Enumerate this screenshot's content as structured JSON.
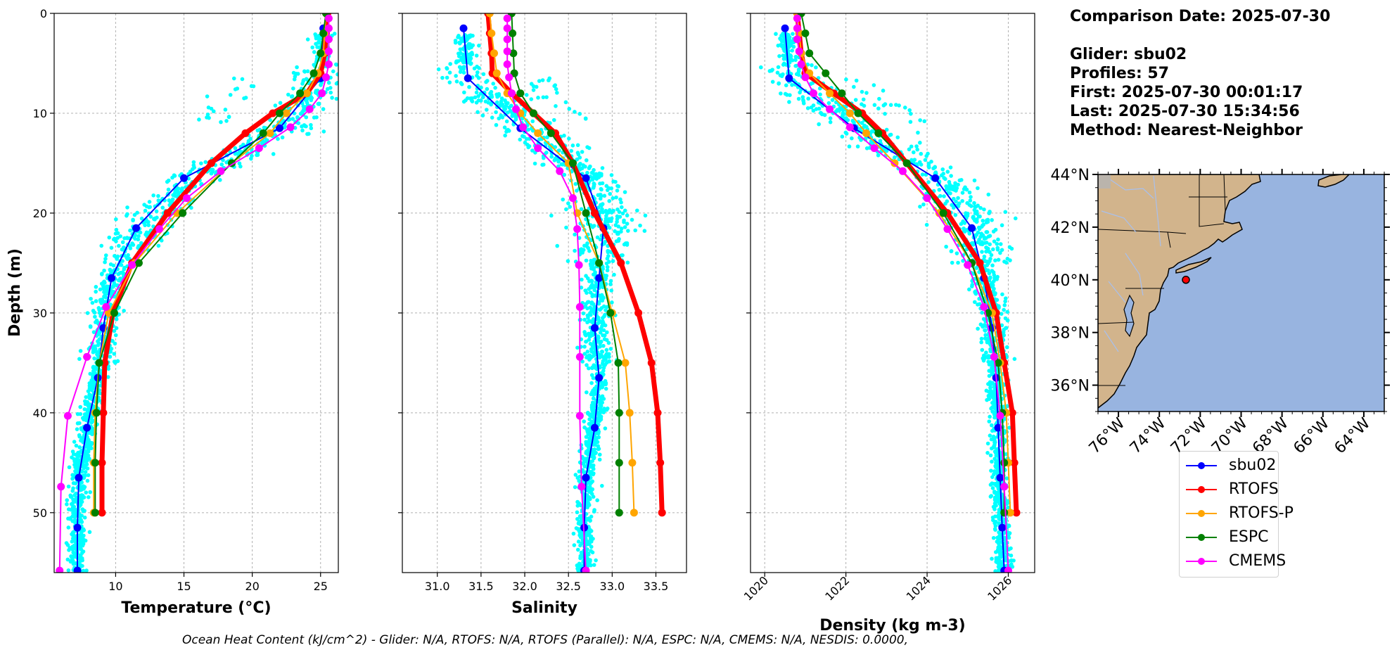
{
  "info": {
    "date_line": "Comparison Date: 2025-07-30",
    "glider_line": "Glider: sbu02",
    "profiles_line": "Profiles: 57",
    "first_line": "First: 2025-07-30 00:01:17",
    "last_line": "Last: 2025-07-30 15:34:56",
    "method_line": "Method: Nearest-Neighbor"
  },
  "footer": "Ocean Heat Content (kJ/cm^2) - Glider: N/A,  RTOFS: N/A,  RTOFS (Parallel): N/A,  ESPC: N/A,  CMEMS: N/A,  NESDIS: 0.0000,",
  "legend": [
    {
      "label": "sbu02",
      "color": "#0000ff"
    },
    {
      "label": "RTOFS",
      "color": "#ff0000"
    },
    {
      "label": "RTOFS-P",
      "color": "#ffa500"
    },
    {
      "label": "ESPC",
      "color": "#008000"
    },
    {
      "label": "CMEMS",
      "color": "#ff00ff"
    }
  ],
  "chart_data": [
    {
      "type": "line",
      "xlabel": "Temperature (°C)",
      "ylabel": "Depth (m)",
      "xlim": [
        5.5,
        26.3
      ],
      "ylim": [
        56,
        0
      ],
      "xticks": [
        10,
        15,
        20,
        25
      ],
      "yticks": [
        0,
        10,
        20,
        30,
        40,
        50
      ],
      "grid": true,
      "scatter": {
        "name": "glider observations",
        "color": "#00ffff",
        "count": 1400
      },
      "series": [
        {
          "name": "sbu02",
          "depths": [
            1.5,
            6.5,
            11.5,
            16.5,
            21.5,
            26.5,
            31.5,
            36.5,
            41.5,
            46.5,
            51.5,
            55.8
          ],
          "values": [
            25.2,
            25.0,
            22.0,
            15.0,
            11.5,
            9.7,
            9.1,
            8.7,
            7.9,
            7.3,
            7.2,
            7.2
          ]
        },
        {
          "name": "RTOFS",
          "depths": [
            0,
            2,
            4,
            6,
            8,
            10,
            12,
            15,
            20,
            25,
            30,
            35,
            40,
            45,
            50
          ],
          "values": [
            25.5,
            25.4,
            25.3,
            25.0,
            24.0,
            21.5,
            19.5,
            17.0,
            13.8,
            11.2,
            9.8,
            9.2,
            9.1,
            9.0,
            9.0
          ]
        },
        {
          "name": "RTOFS-P",
          "depths": [
            0,
            2,
            4,
            6,
            8,
            10,
            12,
            15,
            20,
            25,
            30,
            35,
            40,
            45,
            50
          ],
          "values": [
            25.4,
            25.3,
            25.2,
            24.8,
            24.0,
            22.5,
            21.3,
            18.5,
            14.5,
            11.4,
            9.5,
            8.8,
            8.5,
            8.4,
            8.4
          ]
        },
        {
          "name": "ESPC",
          "depths": [
            0,
            2,
            4,
            6,
            8,
            10,
            12,
            15,
            20,
            25,
            30,
            35,
            40,
            45,
            50
          ],
          "values": [
            25.4,
            25.2,
            25.0,
            24.5,
            23.5,
            22.0,
            20.8,
            18.5,
            14.9,
            11.7,
            9.9,
            8.8,
            8.6,
            8.5,
            8.5
          ]
        },
        {
          "name": "CMEMS",
          "depths": [
            0.5,
            1.5,
            2.6,
            3.8,
            5.1,
            6.4,
            8.0,
            9.6,
            11.4,
            13.5,
            15.8,
            18.5,
            21.6,
            25.2,
            29.4,
            34.4,
            40.3,
            47.4,
            55.8
          ],
          "values": [
            25.6,
            25.6,
            25.6,
            25.6,
            25.6,
            25.4,
            25.1,
            24.2,
            22.8,
            20.5,
            17.7,
            15.2,
            13.2,
            11.2,
            9.3,
            7.9,
            6.5,
            6.0,
            5.9
          ]
        }
      ]
    },
    {
      "type": "line",
      "xlabel": "Salinity",
      "ylabel": "",
      "xlim": [
        30.6,
        33.85
      ],
      "ylim": [
        56,
        0
      ],
      "xticks": [
        31.0,
        31.5,
        32.0,
        32.5,
        33.0,
        33.5
      ],
      "yticks": [
        0,
        10,
        20,
        30,
        40,
        50
      ],
      "grid": true,
      "scatter": {
        "name": "glider observations",
        "color": "#00ffff",
        "count": 1400
      },
      "series": [
        {
          "name": "sbu02",
          "depths": [
            1.5,
            6.5,
            11.5,
            16.5,
            21.5,
            26.5,
            31.5,
            36.5,
            41.5,
            46.5,
            51.5,
            55.8
          ],
          "values": [
            31.3,
            31.35,
            31.95,
            32.7,
            32.9,
            32.85,
            32.8,
            32.85,
            32.8,
            32.7,
            32.68,
            32.68
          ]
        },
        {
          "name": "RTOFS",
          "depths": [
            0,
            2,
            4,
            6,
            8,
            10,
            12,
            15,
            20,
            25,
            30,
            35,
            40,
            45,
            50
          ],
          "values": [
            31.58,
            31.6,
            31.62,
            31.63,
            31.85,
            32.1,
            32.35,
            32.55,
            32.8,
            33.1,
            33.3,
            33.45,
            33.52,
            33.55,
            33.57
          ]
        },
        {
          "name": "RTOFS-P",
          "depths": [
            0,
            2,
            4,
            6,
            8,
            10,
            12,
            15,
            20,
            25,
            30,
            35,
            40,
            45,
            50
          ],
          "values": [
            31.6,
            31.62,
            31.65,
            31.68,
            31.8,
            31.95,
            32.15,
            32.5,
            32.6,
            32.85,
            33.0,
            33.15,
            33.2,
            33.23,
            33.25
          ]
        },
        {
          "name": "ESPC",
          "depths": [
            0,
            2,
            4,
            6,
            8,
            10,
            12,
            15,
            20,
            25,
            30,
            35,
            40,
            45,
            50
          ],
          "values": [
            31.85,
            31.86,
            31.87,
            31.88,
            31.95,
            32.1,
            32.3,
            32.55,
            32.7,
            32.85,
            32.98,
            33.07,
            33.08,
            33.08,
            33.08
          ]
        },
        {
          "name": "CMEMS",
          "depths": [
            0.5,
            1.5,
            2.6,
            3.8,
            5.1,
            6.4,
            8.0,
            9.6,
            11.4,
            13.5,
            15.8,
            18.5,
            21.6,
            25.2,
            29.4,
            34.4,
            40.3,
            47.4,
            55.8
          ],
          "values": [
            31.8,
            31.8,
            31.8,
            31.8,
            31.8,
            31.82,
            31.85,
            31.9,
            31.98,
            32.15,
            32.4,
            32.55,
            32.6,
            32.62,
            32.63,
            32.63,
            32.63,
            32.65,
            32.7
          ]
        }
      ]
    },
    {
      "type": "line",
      "xlabel": "Density (kg m-3)",
      "ylabel": "",
      "xlim": [
        1019.65,
        1026.65
      ],
      "ylim": [
        56,
        0
      ],
      "xticks": [
        1020,
        1022,
        1024,
        1026
      ],
      "yticks": [
        0,
        10,
        20,
        30,
        40,
        50
      ],
      "grid": true,
      "scatter": {
        "name": "glider observations",
        "color": "#00ffff",
        "count": 1400
      },
      "series": [
        {
          "name": "sbu02",
          "depths": [
            1.5,
            6.5,
            11.5,
            16.5,
            21.5,
            26.5,
            31.5,
            36.5,
            41.5,
            46.5,
            51.5,
            55.8
          ],
          "values": [
            1020.5,
            1020.6,
            1022.2,
            1024.2,
            1025.1,
            1025.4,
            1025.6,
            1025.7,
            1025.75,
            1025.8,
            1025.85,
            1025.9
          ]
        },
        {
          "name": "RTOFS",
          "depths": [
            0,
            2,
            4,
            6,
            8,
            10,
            12,
            15,
            20,
            25,
            30,
            35,
            40,
            45,
            50
          ],
          "values": [
            1020.8,
            1020.85,
            1020.9,
            1021.0,
            1021.7,
            1022.4,
            1022.9,
            1023.5,
            1024.5,
            1025.3,
            1025.7,
            1025.9,
            1026.1,
            1026.15,
            1026.2
          ]
        },
        {
          "name": "RTOFS-P",
          "depths": [
            0,
            2,
            4,
            6,
            8,
            10,
            12,
            15,
            20,
            25,
            30,
            35,
            40,
            45,
            50
          ],
          "values": [
            1020.8,
            1020.85,
            1020.9,
            1021.1,
            1021.6,
            1022.1,
            1022.5,
            1023.2,
            1024.3,
            1025.1,
            1025.6,
            1025.8,
            1025.95,
            1026.0,
            1026.05
          ]
        },
        {
          "name": "ESPC",
          "depths": [
            0,
            2,
            4,
            6,
            8,
            10,
            12,
            15,
            20,
            25,
            30,
            35,
            40,
            45,
            50
          ],
          "values": [
            1020.9,
            1021.0,
            1021.1,
            1021.5,
            1021.9,
            1022.3,
            1022.8,
            1023.5,
            1024.4,
            1025.1,
            1025.5,
            1025.75,
            1025.85,
            1025.9,
            1025.9
          ]
        },
        {
          "name": "CMEMS",
          "depths": [
            0.5,
            1.5,
            2.6,
            3.8,
            5.1,
            6.4,
            8.0,
            9.6,
            11.4,
            13.5,
            15.8,
            18.5,
            21.6,
            25.2,
            29.4,
            34.4,
            40.3,
            47.4,
            55.8
          ],
          "values": [
            1020.8,
            1020.8,
            1020.8,
            1020.85,
            1020.9,
            1021.0,
            1021.2,
            1021.6,
            1022.1,
            1022.7,
            1023.4,
            1024.0,
            1024.5,
            1025.0,
            1025.4,
            1025.65,
            1025.8,
            1025.9,
            1026.0
          ]
        }
      ]
    },
    {
      "type": "map",
      "title": "",
      "lon_range": [
        -77,
        -63
      ],
      "lat_range": [
        35,
        44
      ],
      "lon_ticks": [
        "76°W",
        "74°W",
        "72°W",
        "70°W",
        "68°W",
        "66°W",
        "64°W"
      ],
      "lat_ticks": [
        "44°N",
        "42°N",
        "40°N",
        "38°N",
        "36°N"
      ],
      "glider_location": {
        "lon": -72.7,
        "lat": 40.0,
        "color": "#ff0000"
      },
      "land_color": "#d2b48c",
      "ocean_color": "#98b4e0"
    }
  ]
}
